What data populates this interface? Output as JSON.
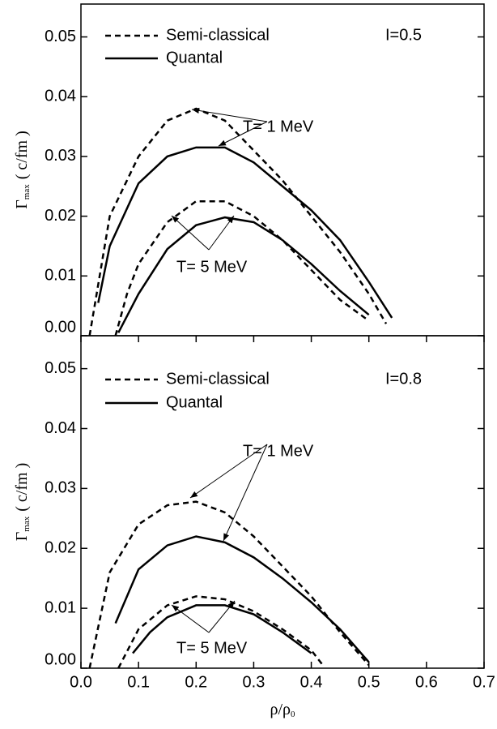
{
  "chart_data": [
    {
      "type": "line",
      "annotations": [
        "I=0.5",
        "T= 1 MeV",
        "T= 5 MeV"
      ],
      "ylabel": {
        "main": "Γ",
        "sub": "max",
        "unit": "( c/fm )"
      },
      "xlim": [
        0,
        0.7
      ],
      "ylim": [
        0,
        0.0555
      ],
      "yticks": [
        {
          "value": 0,
          "label": "0.00"
        },
        {
          "value": 0.01,
          "label": "0.01"
        },
        {
          "value": 0.02,
          "label": "0.02"
        },
        {
          "value": 0.03,
          "label": "0.03"
        },
        {
          "value": 0.04,
          "label": "0.04"
        },
        {
          "value": 0.05,
          "label": "0.05"
        }
      ],
      "legend": "upper left",
      "series": [
        {
          "name": "Semi-classical",
          "color": "#000000",
          "style": "dashed",
          "x": [
            0.015,
            0.05,
            0.1,
            0.15,
            0.2,
            0.25,
            0.3,
            0.35,
            0.4,
            0.45,
            0.5,
            0.53
          ],
          "values": [
            0,
            0.02,
            0.03,
            0.036,
            0.038,
            0.036,
            0.031,
            0.026,
            0.02,
            0.014,
            0.007,
            0.002
          ]
        },
        {
          "name": "Quantal",
          "color": "#000000",
          "style": "solid",
          "x": [
            0.03,
            0.05,
            0.1,
            0.15,
            0.2,
            0.25,
            0.3,
            0.35,
            0.4,
            0.45,
            0.5,
            0.54
          ],
          "values": [
            0.0055,
            0.015,
            0.0255,
            0.03,
            0.0315,
            0.0315,
            0.029,
            0.025,
            0.021,
            0.016,
            0.009,
            0.003
          ]
        },
        {
          "name": "Semi-classical",
          "color": "#000000",
          "style": "dashed",
          "x": [
            0.06,
            0.08,
            0.1,
            0.15,
            0.2,
            0.25,
            0.3,
            0.35,
            0.4,
            0.45,
            0.5
          ],
          "values": [
            0,
            0.007,
            0.012,
            0.019,
            0.0225,
            0.0225,
            0.02,
            0.016,
            0.011,
            0.006,
            0.0025
          ]
        },
        {
          "name": "Quantal",
          "color": "#000000",
          "style": "solid",
          "x": [
            0.065,
            0.1,
            0.15,
            0.2,
            0.25,
            0.3,
            0.35,
            0.4,
            0.45,
            0.5
          ],
          "values": [
            0.0005,
            0.007,
            0.0145,
            0.0185,
            0.0198,
            0.019,
            0.016,
            0.012,
            0.0075,
            0.0035
          ]
        }
      ]
    },
    {
      "type": "line",
      "annotations": [
        "I=0.8",
        "T= 1 MeV",
        "T= 5 MeV"
      ],
      "ylabel": {
        "main": "Γ",
        "sub": "max",
        "unit": "( c/fm )"
      },
      "xlabel": {
        "main": "ρ/ρ",
        "sub": "0"
      },
      "xlim": [
        0,
        0.7
      ],
      "ylim": [
        0,
        0.0555
      ],
      "xticks": [
        {
          "value": 0,
          "label": "0.0"
        },
        {
          "value": 0.1,
          "label": "0.1"
        },
        {
          "value": 0.2,
          "label": "0.2"
        },
        {
          "value": 0.3,
          "label": "0.3"
        },
        {
          "value": 0.4,
          "label": "0.4"
        },
        {
          "value": 0.5,
          "label": "0.5"
        },
        {
          "value": 0.6,
          "label": "0.6"
        },
        {
          "value": 0.7,
          "label": "0.7"
        }
      ],
      "yticks": [
        {
          "value": 0,
          "label": "0.00"
        },
        {
          "value": 0.01,
          "label": "0.01"
        },
        {
          "value": 0.02,
          "label": "0.02"
        },
        {
          "value": 0.03,
          "label": "0.03"
        },
        {
          "value": 0.04,
          "label": "0.04"
        },
        {
          "value": 0.05,
          "label": "0.05"
        }
      ],
      "legend": "upper left",
      "series": [
        {
          "name": "Semi-classical",
          "color": "#000000",
          "style": "dashed",
          "x": [
            0.015,
            0.05,
            0.1,
            0.15,
            0.2,
            0.25,
            0.3,
            0.35,
            0.4,
            0.45,
            0.5
          ],
          "values": [
            0,
            0.016,
            0.024,
            0.0272,
            0.0278,
            0.026,
            0.022,
            0.017,
            0.012,
            0.006,
            0.0005
          ]
        },
        {
          "name": "Quantal",
          "color": "#000000",
          "style": "solid",
          "x": [
            0.06,
            0.1,
            0.15,
            0.2,
            0.25,
            0.3,
            0.35,
            0.4,
            0.45,
            0.5
          ],
          "values": [
            0.0075,
            0.0165,
            0.0205,
            0.022,
            0.021,
            0.0185,
            0.015,
            0.011,
            0.0065,
            0.001
          ]
        },
        {
          "name": "Semi-classical",
          "color": "#000000",
          "style": "dashed",
          "x": [
            0.065,
            0.1,
            0.15,
            0.2,
            0.25,
            0.3,
            0.35,
            0.4,
            0.42
          ],
          "values": [
            0,
            0.0065,
            0.0105,
            0.012,
            0.0115,
            0.0095,
            0.0065,
            0.003,
            0.0005
          ]
        },
        {
          "name": "Quantal",
          "color": "#000000",
          "style": "solid",
          "x": [
            0.09,
            0.12,
            0.15,
            0.2,
            0.25,
            0.3,
            0.35,
            0.4
          ],
          "values": [
            0.0025,
            0.006,
            0.0085,
            0.0105,
            0.0105,
            0.009,
            0.006,
            0.0025
          ]
        }
      ]
    }
  ]
}
